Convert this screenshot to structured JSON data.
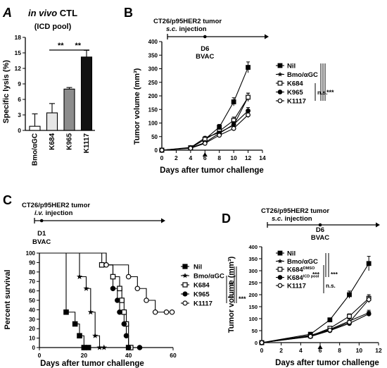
{
  "chart_data": [
    {
      "panel": "A",
      "type": "bar",
      "title_italic": "in vivo",
      "title_rest": " CTL",
      "subtitle": "(ICD pool)",
      "xlabel": "",
      "ylabel": "Specific lysis (%)",
      "ylim": [
        0,
        18
      ],
      "yticks": [
        0,
        3,
        6,
        9,
        12,
        15,
        18
      ],
      "categories": [
        "Bmo/αGC",
        "K684",
        "K965",
        "K1117"
      ],
      "values": [
        0.8,
        3.4,
        8.0,
        14.2
      ],
      "errors": [
        2.4,
        1.8,
        0.3,
        1.3
      ],
      "colors": [
        "#ffffff",
        "#e6e6e6",
        "#8c8c8c",
        "#111111"
      ],
      "significance": [
        {
          "from": 1,
          "to": 2,
          "label": "**"
        },
        {
          "from": 2,
          "to": 3,
          "label": "**"
        }
      ]
    },
    {
      "panel": "B",
      "type": "line",
      "model_line1": "CT26/p95HER2 tumor",
      "model_line2_italic": "s.c.",
      "model_line2_rest": " injection",
      "event_day": "D6",
      "event_label": "BVAC",
      "event_x": 6,
      "xlabel": "Days after tumor challenge",
      "ylabel": "Tumor volume (mm³)",
      "xlim": [
        0,
        14
      ],
      "ylim": [
        0,
        400
      ],
      "xticks": [
        0,
        2,
        4,
        6,
        8,
        10,
        12,
        14
      ],
      "yticks": [
        0,
        50,
        100,
        150,
        200,
        250,
        300,
        350,
        400
      ],
      "x": [
        0,
        4,
        6,
        8,
        10,
        12
      ],
      "series": [
        {
          "name": "Nil",
          "marker": "square-filled",
          "values": [
            0,
            8,
            40,
            85,
            178,
            305
          ],
          "errors": [
            0,
            3,
            6,
            10,
            15,
            20
          ]
        },
        {
          "name": "Bmo/αGC",
          "marker": "star",
          "values": [
            0,
            10,
            45,
            65,
            92,
            195
          ],
          "errors": [
            0,
            3,
            6,
            8,
            12,
            15
          ]
        },
        {
          "name": "K684",
          "marker": "square-open",
          "values": [
            0,
            9,
            40,
            70,
            110,
            195
          ],
          "errors": [
            0,
            3,
            6,
            9,
            12,
            15
          ]
        },
        {
          "name": "K965",
          "marker": "circle-filled",
          "values": [
            0,
            8,
            28,
            62,
            95,
            145
          ],
          "errors": [
            0,
            3,
            5,
            8,
            10,
            12
          ]
        },
        {
          "name": "K1117",
          "marker": "circle-open",
          "values": [
            0,
            7,
            25,
            55,
            80,
            130
          ],
          "errors": [
            0,
            3,
            4,
            7,
            9,
            10
          ]
        }
      ],
      "annotations": [
        "n.s.",
        "***"
      ]
    },
    {
      "panel": "C",
      "type": "line",
      "model_line1": "CT26/p95HER2 tumor",
      "model_line2_italic": "i.v.",
      "model_line2_rest": " injection",
      "event_day": "D1",
      "event_label": "BVAC",
      "event_x": 1,
      "xlabel": "Days after tumor challenge",
      "ylabel": "Percent survival",
      "xlim": [
        0,
        60
      ],
      "ylim": [
        0,
        100
      ],
      "xticks": [
        0,
        20,
        40,
        60
      ],
      "yticks": [
        0,
        10,
        20,
        30,
        40,
        50,
        60,
        70,
        80,
        90,
        100
      ],
      "series": [
        {
          "name": "Nil",
          "marker": "square-filled",
          "steps": [
            [
              0,
              100
            ],
            [
              12,
              100
            ],
            [
              12,
              37.5
            ],
            [
              16,
              37.5
            ],
            [
              16,
              25
            ],
            [
              18,
              25
            ],
            [
              18,
              12.5
            ],
            [
              20,
              12.5
            ],
            [
              20,
              0
            ],
            [
              22,
              0
            ]
          ]
        },
        {
          "name": "Bmo/αGC",
          "marker": "star",
          "steps": [
            [
              0,
              100
            ],
            [
              18,
              100
            ],
            [
              18,
              75
            ],
            [
              21,
              75
            ],
            [
              21,
              62.5
            ],
            [
              23,
              62.5
            ],
            [
              23,
              37.5
            ],
            [
              25,
              37.5
            ],
            [
              25,
              12.5
            ],
            [
              27,
              12.5
            ],
            [
              27,
              0
            ],
            [
              29,
              0
            ]
          ]
        },
        {
          "name": "K684",
          "marker": "square-open",
          "steps": [
            [
              0,
              100
            ],
            [
              28,
              100
            ],
            [
              28,
              87.5
            ],
            [
              33,
              87.5
            ],
            [
              33,
              75
            ],
            [
              36,
              75
            ],
            [
              36,
              62.5
            ],
            [
              37,
              62.5
            ],
            [
              37,
              50
            ],
            [
              38,
              50
            ],
            [
              38,
              37.5
            ],
            [
              39,
              37.5
            ],
            [
              39,
              25
            ],
            [
              40,
              25
            ],
            [
              40,
              0
            ],
            [
              41,
              0
            ]
          ]
        },
        {
          "name": "K965",
          "marker": "circle-filled",
          "steps": [
            [
              0,
              100
            ],
            [
              30,
              100
            ],
            [
              30,
              87.5
            ],
            [
              33,
              87.5
            ],
            [
              33,
              62.5
            ],
            [
              35,
              62.5
            ],
            [
              35,
              50
            ],
            [
              36,
              50
            ],
            [
              36,
              37.5
            ],
            [
              38,
              37.5
            ],
            [
              38,
              25
            ],
            [
              39,
              25
            ],
            [
              39,
              12.5
            ],
            [
              40,
              12.5
            ],
            [
              40,
              0
            ],
            [
              45,
              0
            ]
          ]
        },
        {
          "name": "K1117",
          "marker": "circle-open",
          "steps": [
            [
              0,
              100
            ],
            [
              30,
              100
            ],
            [
              30,
              87.5
            ],
            [
              40,
              87.5
            ],
            [
              40,
              75
            ],
            [
              44,
              75
            ],
            [
              44,
              62.5
            ],
            [
              48,
              62.5
            ],
            [
              48,
              50
            ],
            [
              52,
              50
            ],
            [
              52,
              37.5
            ],
            [
              57,
              37.5
            ]
          ]
        }
      ],
      "annotations": [
        "**",
        "**",
        "***"
      ]
    },
    {
      "panel": "D",
      "type": "line",
      "model_line1": "CT26/p95HER2 tumor",
      "model_line2_italic": "s.c.",
      "model_line2_rest": " injection",
      "event_day": "D6",
      "event_label": "BVAC",
      "event_x": 6,
      "xlabel": "Days after tumor challenge",
      "ylabel": "Tumor volume (mm³)",
      "xlim": [
        0,
        12
      ],
      "ylim": [
        0,
        400
      ],
      "xticks": [
        0,
        2,
        4,
        6,
        8,
        10,
        12
      ],
      "yticks": [
        0,
        50,
        100,
        150,
        200,
        250,
        300,
        350,
        400
      ],
      "x": [
        0,
        5,
        7,
        9,
        11
      ],
      "series": [
        {
          "name": "Nil",
          "marker": "square-filled",
          "values": [
            0,
            35,
            95,
            200,
            330
          ],
          "errors": [
            0,
            5,
            8,
            15,
            30
          ]
        },
        {
          "name": "Bmo/αGC",
          "marker": "star",
          "values": [
            0,
            30,
            55,
            90,
            125
          ],
          "errors": [
            0,
            4,
            6,
            8,
            10
          ]
        },
        {
          "name": "K684",
          "sup": "DMSO",
          "marker": "square-open",
          "values": [
            0,
            28,
            60,
            110,
            185
          ],
          "errors": [
            0,
            4,
            6,
            10,
            15
          ]
        },
        {
          "name": "K684",
          "sup": "ICD pool",
          "marker": "circle-filled",
          "values": [
            0,
            25,
            50,
            80,
            120
          ],
          "errors": [
            0,
            3,
            5,
            7,
            10
          ]
        },
        {
          "name": "K1117",
          "marker": "circle-open",
          "values": [
            0,
            26,
            52,
            85,
            180
          ],
          "errors": [
            0,
            3,
            5,
            8,
            14
          ]
        }
      ],
      "annotations": [
        "***",
        "***",
        "n.s."
      ]
    }
  ]
}
